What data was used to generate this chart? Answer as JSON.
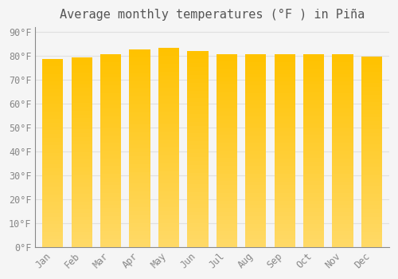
{
  "title": "Average monthly temperatures (°F ) in Piña",
  "months": [
    "Jan",
    "Feb",
    "Mar",
    "Apr",
    "May",
    "Jun",
    "Jul",
    "Aug",
    "Sep",
    "Oct",
    "Nov",
    "Dec"
  ],
  "values": [
    78.8,
    79.3,
    80.6,
    82.8,
    83.5,
    81.9,
    80.8,
    80.6,
    80.6,
    80.8,
    80.6,
    79.7
  ],
  "bar_color_top": "#FFC200",
  "bar_color_bottom": "#FFD966",
  "background_color": "#f5f5f5",
  "grid_color": "#e0e0e0",
  "ytick_values": [
    0,
    10,
    20,
    30,
    40,
    50,
    60,
    70,
    80,
    90
  ],
  "ylim": [
    0,
    92
  ],
  "title_fontsize": 11,
  "tick_fontsize": 8.5,
  "tick_color": "#888888",
  "font_family": "monospace"
}
